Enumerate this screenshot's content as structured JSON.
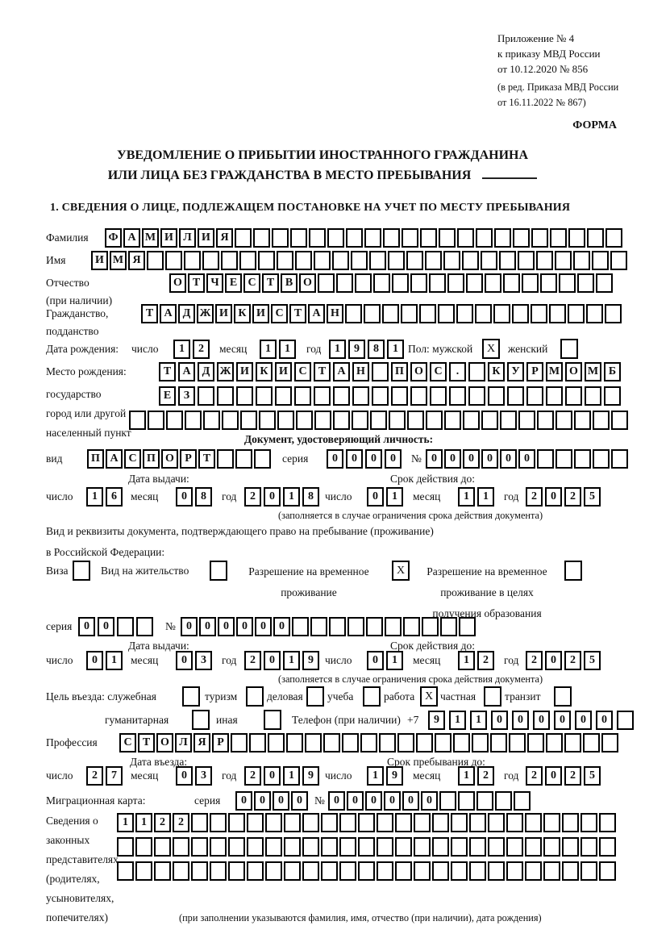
{
  "header": {
    "appendix_line1": "Приложение № 4",
    "appendix_line2": "к приказу МВД России",
    "appendix_line3": "от 10.12.2020 № 856",
    "edition_line1": "(в ред. Приказа МВД России",
    "edition_line2": "от 16.11.2022 № 867)",
    "form_label": "ФОРМА"
  },
  "title": {
    "line1": "УВЕДОМЛЕНИЕ О ПРИБЫТИИ ИНОСТРАННОГО ГРАЖДАНИНА",
    "line2": "ИЛИ ЛИЦА БЕЗ ГРАЖДАНСТВА В МЕСТО ПРЕБЫВАНИЯ"
  },
  "section1_heading": "1. СВЕДЕНИЯ О ЛИЦЕ, ПОДЛЕЖАЩЕМ ПОСТАНОВКЕ НА УЧЕТ ПО МЕСТУ ПРЕБЫВАНИЯ",
  "labels": {
    "surname": "Фамилия",
    "name": "Имя",
    "patronymic": "Отчество",
    "patronymic_note": "(при наличии)",
    "citizenship1": "Гражданство,",
    "citizenship2": "подданство",
    "birthdate": "Дата рождения:",
    "day": "число",
    "month": "месяц",
    "year": "год",
    "gender_male": "Пол: мужской",
    "gender_female": "женский",
    "birthplace": "Место рождения:",
    "state": "государство",
    "city1": "город или другой",
    "city2": "населенный пункт",
    "doc_header": "Документ, удостоверяющий личность:",
    "doc_type": "вид",
    "series": "серия",
    "number": "№",
    "issue_date": "Дата выдачи:",
    "valid_until": "Срок действия до:",
    "restriction_note": "(заполняется в случае ограничения срока действия документа)",
    "residence_doc1": "Вид и реквизиты документа, подтверждающего право на пребывание (проживание)",
    "residence_doc2": "в Российской Федерации:",
    "visa": "Виза",
    "residence_permit": "Вид на жительство",
    "temp_residence1": "Разрешение на временное",
    "temp_residence2": "проживание",
    "edu_residence1": "Разрешение на временное",
    "edu_residence2": "проживание в целях",
    "edu_residence3": "получения образования",
    "purpose": "Цель въезда: служебная",
    "tourism": "туризм",
    "business": "деловая",
    "study": "учеба",
    "work": "работа",
    "private": "частная",
    "transit": "транзит",
    "humanitarian": "гуманитарная",
    "other": "иная",
    "phone": "Телефон (при наличии)",
    "phone_prefix": "+7",
    "profession": "Профессия",
    "entry_date": "Дата въезда:",
    "stay_until": "Срок пребывания до:",
    "migration_card": "Миграционная карта:",
    "legal1": "Сведения о",
    "legal2": "законных",
    "legal3": "представителях",
    "legal4": "(родителях,",
    "legal5": "усыновителях,",
    "legal6": "попечителях)",
    "legal_note": "(при заполнении указываются фамилия, имя, отчество (при наличии), дата рождения)"
  },
  "fields": {
    "surname": {
      "value": "ФАМИЛИЯ",
      "len": 28
    },
    "name": {
      "value": "ИМЯ",
      "len": 29
    },
    "patronymic": {
      "value": "ОТЧЕСТВО",
      "len": 24
    },
    "citizenship": {
      "value": "ТАДЖИКИСТАН",
      "len": 26
    },
    "birth_day": {
      "value": "12",
      "len": 2
    },
    "birth_month": {
      "value": "11",
      "len": 2
    },
    "birth_year": {
      "value": "1981",
      "len": 4
    },
    "gender_male": "X",
    "gender_female": "",
    "birthplace1": {
      "value": "ТАДЖИКИСТАН ПОС. КУРМОМБ",
      "len": 24
    },
    "birthplace2": {
      "value": "ЕЗ",
      "len": 24
    },
    "birthplace3": {
      "value": "",
      "len": 27
    },
    "doc_type": {
      "value": "ПАСПОРТ",
      "len": 10
    },
    "doc_series": {
      "value": "0000",
      "len": 4
    },
    "doc_number": {
      "value": "000000",
      "len": 11
    },
    "doc_issue_day": {
      "value": "16",
      "len": 2
    },
    "doc_issue_month": {
      "value": "08",
      "len": 2
    },
    "doc_issue_year": {
      "value": "2018",
      "len": 4
    },
    "doc_valid_day": {
      "value": "01",
      "len": 2
    },
    "doc_valid_month": {
      "value": "11",
      "len": 2
    },
    "doc_valid_year": {
      "value": "2025",
      "len": 4
    },
    "visa_cb": "",
    "residence_permit_cb": "",
    "temp_residence_cb": "X",
    "edu_residence_cb": "",
    "res_series": {
      "value": "00",
      "len": 4
    },
    "res_number": {
      "value": "000000",
      "len": 16
    },
    "res_issue_day": {
      "value": "01",
      "len": 2
    },
    "res_issue_month": {
      "value": "03",
      "len": 2
    },
    "res_issue_year": {
      "value": "2019",
      "len": 4
    },
    "res_valid_day": {
      "value": "01",
      "len": 2
    },
    "res_valid_month": {
      "value": "12",
      "len": 2
    },
    "res_valid_year": {
      "value": "2025",
      "len": 4
    },
    "purpose_official": "",
    "purpose_tourism": "",
    "purpose_business": "",
    "purpose_study": "",
    "purpose_work": "X",
    "purpose_private": "",
    "purpose_transit": "",
    "purpose_humanitarian": "",
    "purpose_other": "",
    "phone_digits": {
      "value": "911000000",
      "len": 10
    },
    "profession": {
      "value": "СТОЛЯР",
      "len": 27
    },
    "entry_day": {
      "value": "27",
      "len": 2
    },
    "entry_month": {
      "value": "03",
      "len": 2
    },
    "entry_year": {
      "value": "2019",
      "len": 4
    },
    "stay_day": {
      "value": "19",
      "len": 2
    },
    "stay_month": {
      "value": "12",
      "len": 2
    },
    "stay_year": {
      "value": "2025",
      "len": 4
    },
    "mig_series": {
      "value": "0000",
      "len": 4
    },
    "mig_number": {
      "value": "000000",
      "len": 11
    },
    "legal_row1": {
      "value": "1122",
      "len": 27
    },
    "legal_row2": {
      "value": "",
      "len": 27
    },
    "legal_row3": {
      "value": "",
      "len": 27
    }
  }
}
